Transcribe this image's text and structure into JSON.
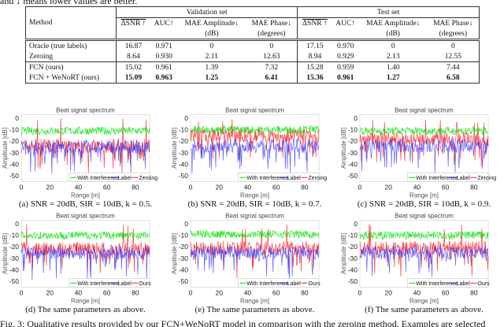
{
  "top_text": "and ↓ means lower values are better.",
  "table": {
    "method_header": "Method",
    "groups": [
      "Validation set",
      "Test set"
    ],
    "columns": [
      {
        "l1": "ΔSNR ↑",
        "l2": "",
        "overline": true
      },
      {
        "l1": "AUC↑",
        "l2": ""
      },
      {
        "l1": "MAE Amplitude↓",
        "l2": "(dB)"
      },
      {
        "l1": "MAE Phase↓",
        "l2": "(degrees)"
      }
    ],
    "rows": [
      {
        "method": "Oracle (true labels)",
        "values": [
          "16.87",
          "0.971",
          "0",
          "0",
          "17.15",
          "0.970",
          "0",
          "0"
        ],
        "bold": false
      },
      {
        "method": "Zeroing",
        "values": [
          "8.64",
          "0.930",
          "2.11",
          "12.63",
          "8.94",
          "0.929",
          "2.13",
          "12.55"
        ],
        "bold": false
      },
      {
        "method": "FCN (ours)",
        "values": [
          "15.02",
          "0.961",
          "1.39",
          "7.32",
          "15.28",
          "0.959",
          "1.40",
          "7.44"
        ],
        "bold": false
      },
      {
        "method": "FCN + WeNoRT (ours)",
        "values": [
          "15.09",
          "0.963",
          "1.25",
          "6.41",
          "15.36",
          "0.961",
          "1.27",
          "6.58"
        ],
        "bold": true
      }
    ]
  },
  "chart_data": [
    {
      "id": "a",
      "type": "line",
      "title": "Beat signal spectrum",
      "xlabel": "Range [m]",
      "ylabel": "Amplitude [dB]",
      "xlim": [
        0,
        90
      ],
      "ylim": [
        -55,
        3
      ],
      "xticks": [
        0,
        20,
        40,
        60,
        80
      ],
      "yticks": [
        0,
        -10,
        -20,
        -30,
        -40,
        -50
      ],
      "series": [
        {
          "name": "With Interference",
          "color": "#00e000",
          "mean": -11
        },
        {
          "name": "Label",
          "color": "#3030ff",
          "mean": -25
        },
        {
          "name": "Zeroing",
          "color": "#ff2020",
          "mean": -24
        }
      ],
      "caption": {
        "label": "(a)",
        "text": "SNR = 20dB, SIR = 10dB, k = 0.5."
      }
    },
    {
      "id": "b",
      "type": "line",
      "title": "Beat signal spectrum",
      "xlabel": "Range [m]",
      "ylabel": "Amplitude [dB]",
      "xlim": [
        0,
        90
      ],
      "ylim": [
        -55,
        3
      ],
      "xticks": [
        0,
        20,
        40,
        60,
        80
      ],
      "yticks": [
        0,
        -10,
        -20,
        -30,
        -40,
        -50
      ],
      "series": [
        {
          "name": "With Interference",
          "color": "#00e000",
          "mean": -10
        },
        {
          "name": "Label",
          "color": "#3030ff",
          "mean": -24
        },
        {
          "name": "Zeroing",
          "color": "#ff2020",
          "mean": -15
        }
      ],
      "caption": {
        "label": "(b)",
        "text": "SNR = 20dB, SIR = 10dB, k = 0.7."
      }
    },
    {
      "id": "c",
      "type": "line",
      "title": "Beat signal spectrum",
      "xlabel": "Range [m]",
      "ylabel": "Amplitude [dB]",
      "xlim": [
        0,
        90
      ],
      "ylim": [
        -55,
        3
      ],
      "xticks": [
        0,
        20,
        40,
        60,
        80
      ],
      "yticks": [
        0,
        -10,
        -20,
        -30,
        -40,
        -50
      ],
      "series": [
        {
          "name": "With Interference",
          "color": "#00e000",
          "mean": -11
        },
        {
          "name": "Label",
          "color": "#3030ff",
          "mean": -24
        },
        {
          "name": "Zeroing",
          "color": "#ff2020",
          "mean": -18
        }
      ],
      "caption": {
        "label": "(c)",
        "text": "SNR = 20dB, SIR = 10dB, k = 0.9."
      }
    },
    {
      "id": "d",
      "type": "line",
      "title": "Beat signal spectrum",
      "xlabel": "Range [m]",
      "ylabel": "Amplitude [dB]",
      "xlim": [
        0,
        90
      ],
      "ylim": [
        -55,
        3
      ],
      "xticks": [
        0,
        20,
        40,
        60,
        80
      ],
      "yticks": [
        0,
        -10,
        -20,
        -30,
        -40,
        -50
      ],
      "series": [
        {
          "name": "With Interference",
          "color": "#00e000",
          "mean": -10
        },
        {
          "name": "Label",
          "color": "#3030ff",
          "mean": -25
        },
        {
          "name": "Ours",
          "color": "#ff2020",
          "mean": -22
        }
      ],
      "caption": {
        "label": "(d)",
        "text": "The same parameters as above."
      }
    },
    {
      "id": "e",
      "type": "line",
      "title": "Beat signal spectrum",
      "xlabel": "Range [m]",
      "ylabel": "Amplitude [dB]",
      "xlim": [
        0,
        90
      ],
      "ylim": [
        -55,
        3
      ],
      "xticks": [
        0,
        20,
        40,
        60,
        80
      ],
      "yticks": [
        0,
        -10,
        -20,
        -30,
        -40,
        -50
      ],
      "series": [
        {
          "name": "With Interference",
          "color": "#00e000",
          "mean": -9
        },
        {
          "name": "Label",
          "color": "#3030ff",
          "mean": -25
        },
        {
          "name": "Ours",
          "color": "#ff2020",
          "mean": -21
        }
      ],
      "caption": {
        "label": "(e)",
        "text": "The same parameters as above."
      }
    },
    {
      "id": "f",
      "type": "line",
      "title": "Beat signal spectrum",
      "xlabel": "Range [m]",
      "ylabel": "Amplitude [dB]",
      "xlim": [
        0,
        90
      ],
      "ylim": [
        -55,
        3
      ],
      "xticks": [
        0,
        20,
        40,
        60,
        80
      ],
      "yticks": [
        0,
        -10,
        -20,
        -30,
        -40,
        -50
      ],
      "series": [
        {
          "name": "With Interference",
          "color": "#00e000",
          "mean": -10
        },
        {
          "name": "Label",
          "color": "#3030ff",
          "mean": -25
        },
        {
          "name": "Ours",
          "color": "#ff2020",
          "mean": -21
        }
      ],
      "caption": {
        "label": "(f)",
        "text": "The same parameters as above."
      }
    }
  ],
  "figure_caption": "Fig. 3: Qualitative results provided by our FCN+WeNoRT model in comparison with the zeroing method. Examples are selected"
}
